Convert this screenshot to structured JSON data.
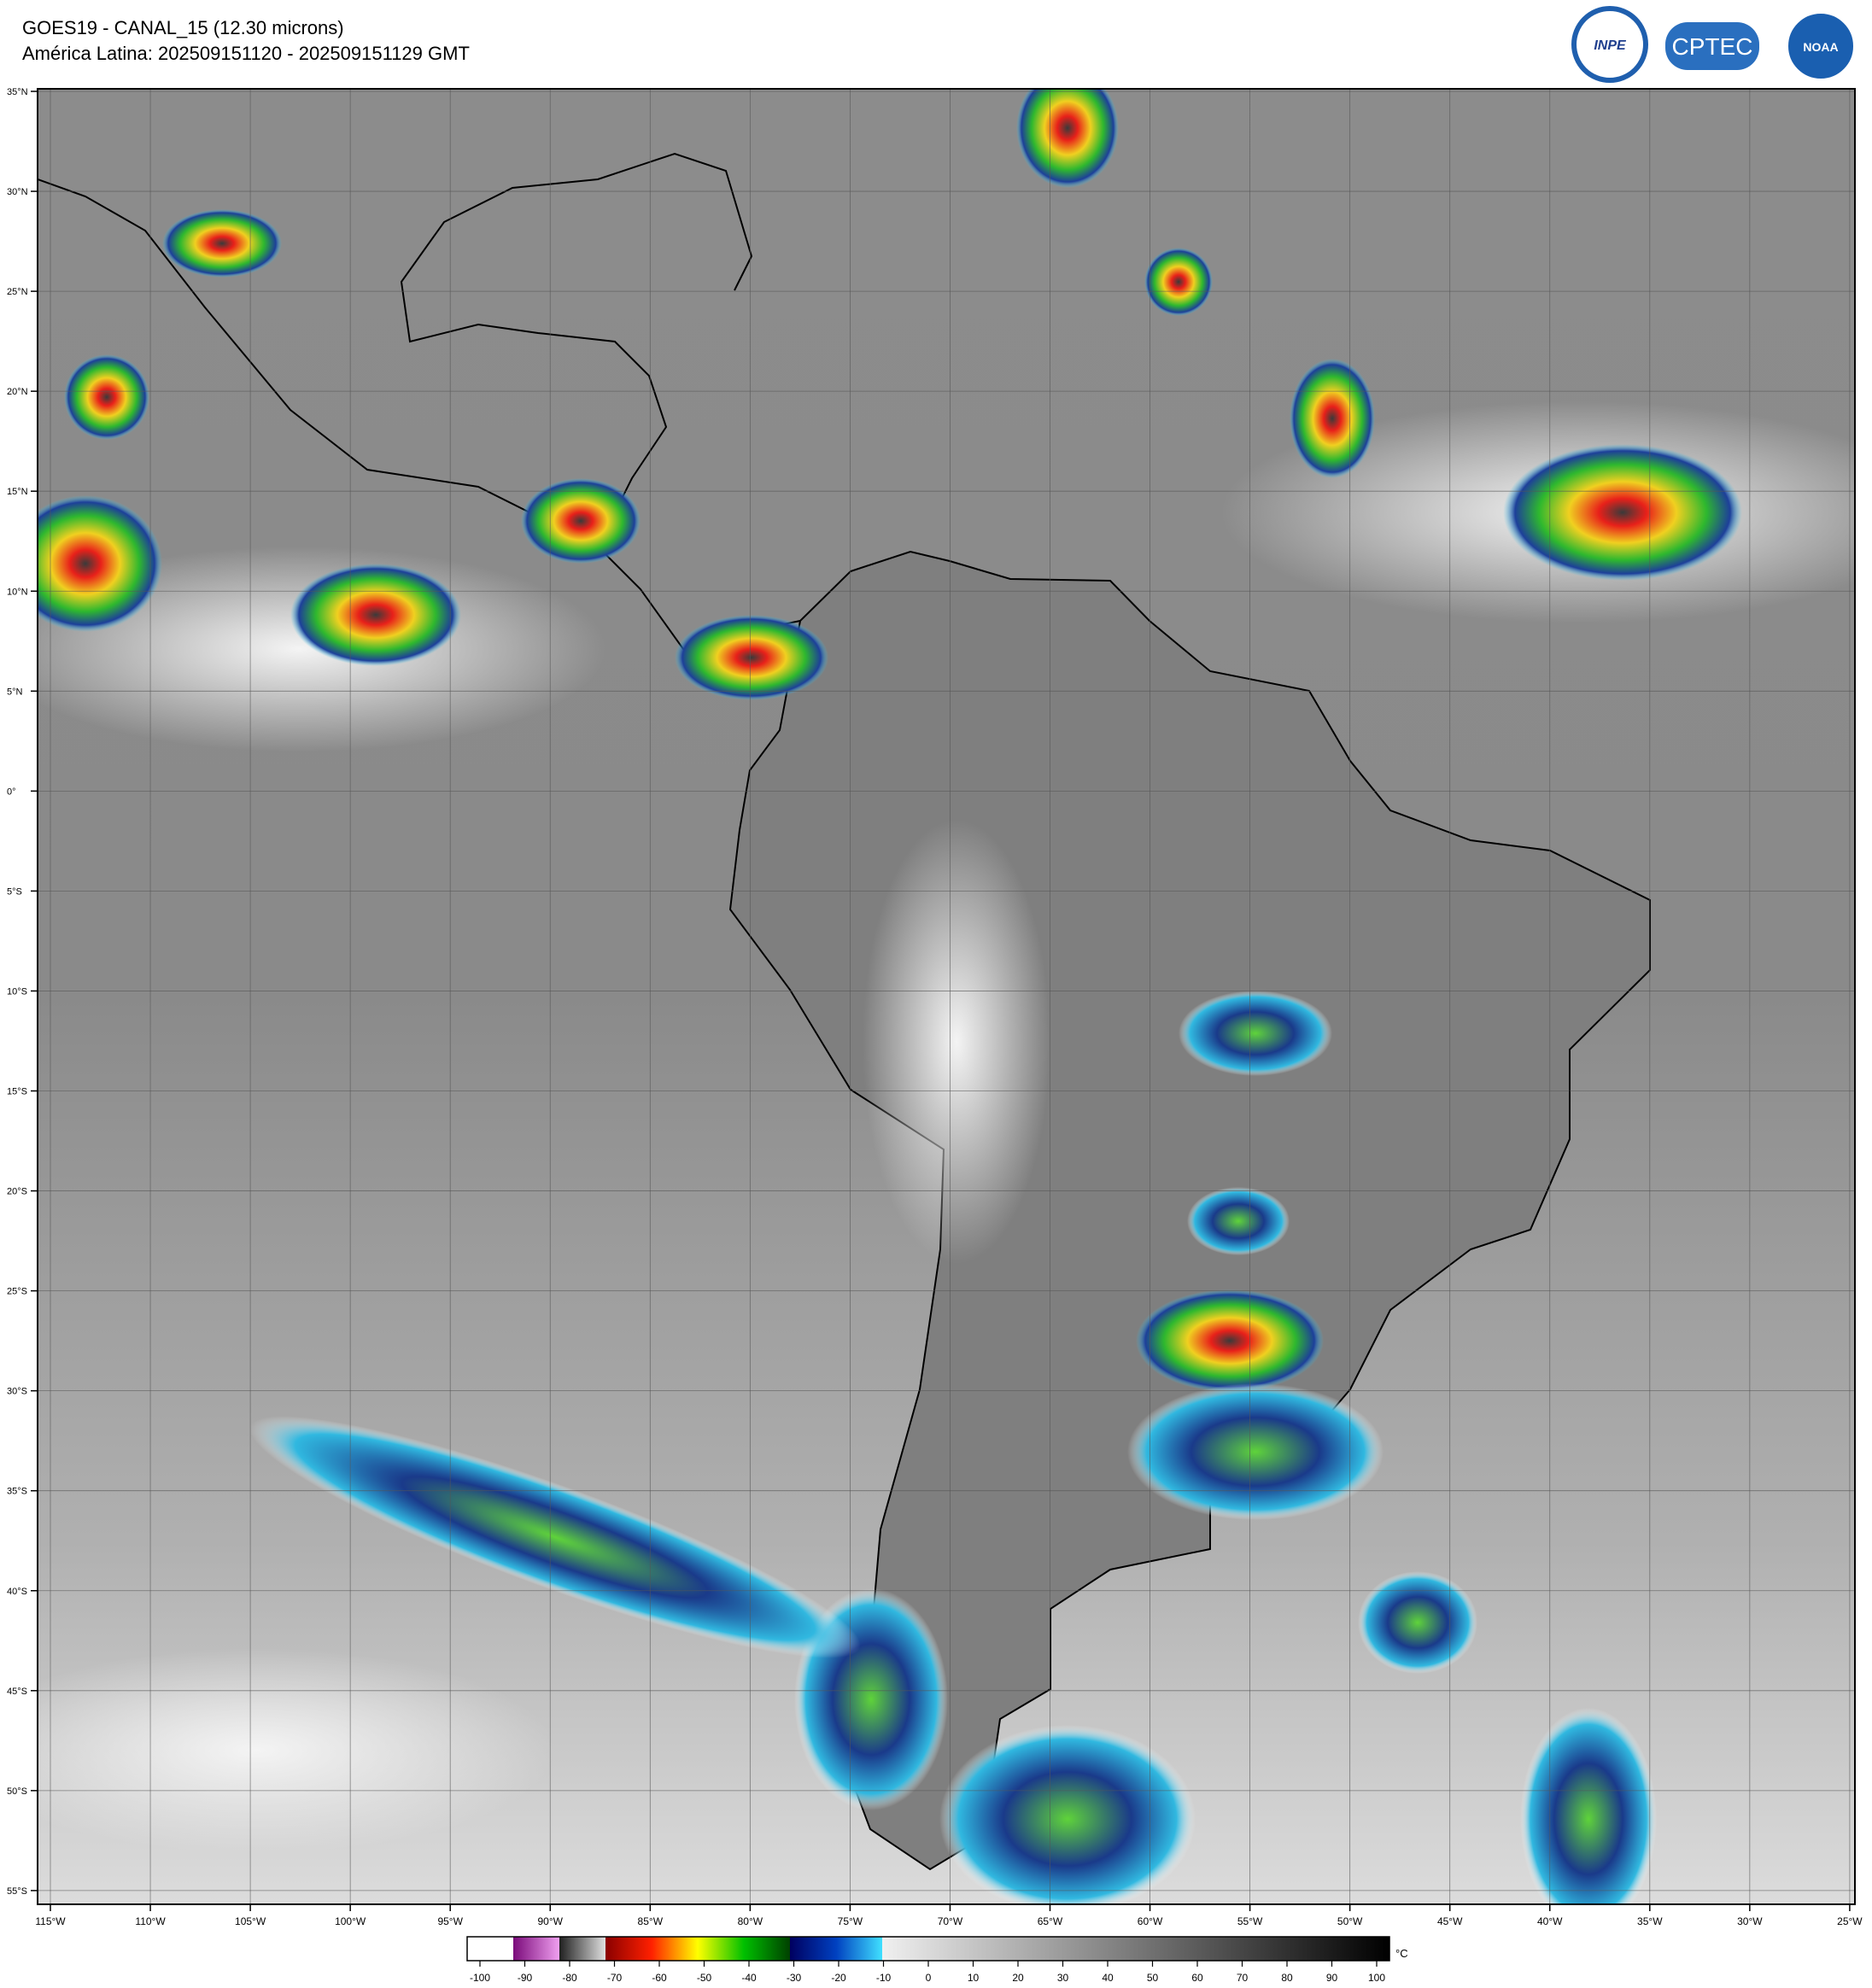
{
  "header": {
    "title": "GOES19 - CANAL_15 (12.30 microns)",
    "subtitle": "América Latina: 202509151120 - 202509151129 GMT"
  },
  "logos": [
    "INPE",
    "CPTEC",
    "NOAA"
  ],
  "map": {
    "lat_labels": [
      "35°N",
      "30°N",
      "25°N",
      "20°N",
      "15°N",
      "10°N",
      "5°N",
      "0°",
      "5°S",
      "10°S",
      "15°S",
      "20°S",
      "25°S",
      "30°S",
      "35°S",
      "40°S",
      "45°S",
      "50°S",
      "55°S"
    ],
    "lon_labels": [
      "115°W",
      "110°W",
      "105°W",
      "100°W",
      "95°W",
      "90°W",
      "85°W",
      "80°W",
      "75°W",
      "70°W",
      "65°W",
      "60°W",
      "55°W",
      "50°W",
      "45°W",
      "40°W",
      "35°W",
      "30°W",
      "25°W"
    ]
  },
  "colorbar": {
    "ticks": [
      -100,
      -90,
      -80,
      -70,
      -60,
      -50,
      -40,
      -30,
      -20,
      -10,
      0,
      10,
      20,
      30,
      40,
      50,
      60,
      70,
      80,
      90,
      100
    ],
    "unit": "°C"
  }
}
